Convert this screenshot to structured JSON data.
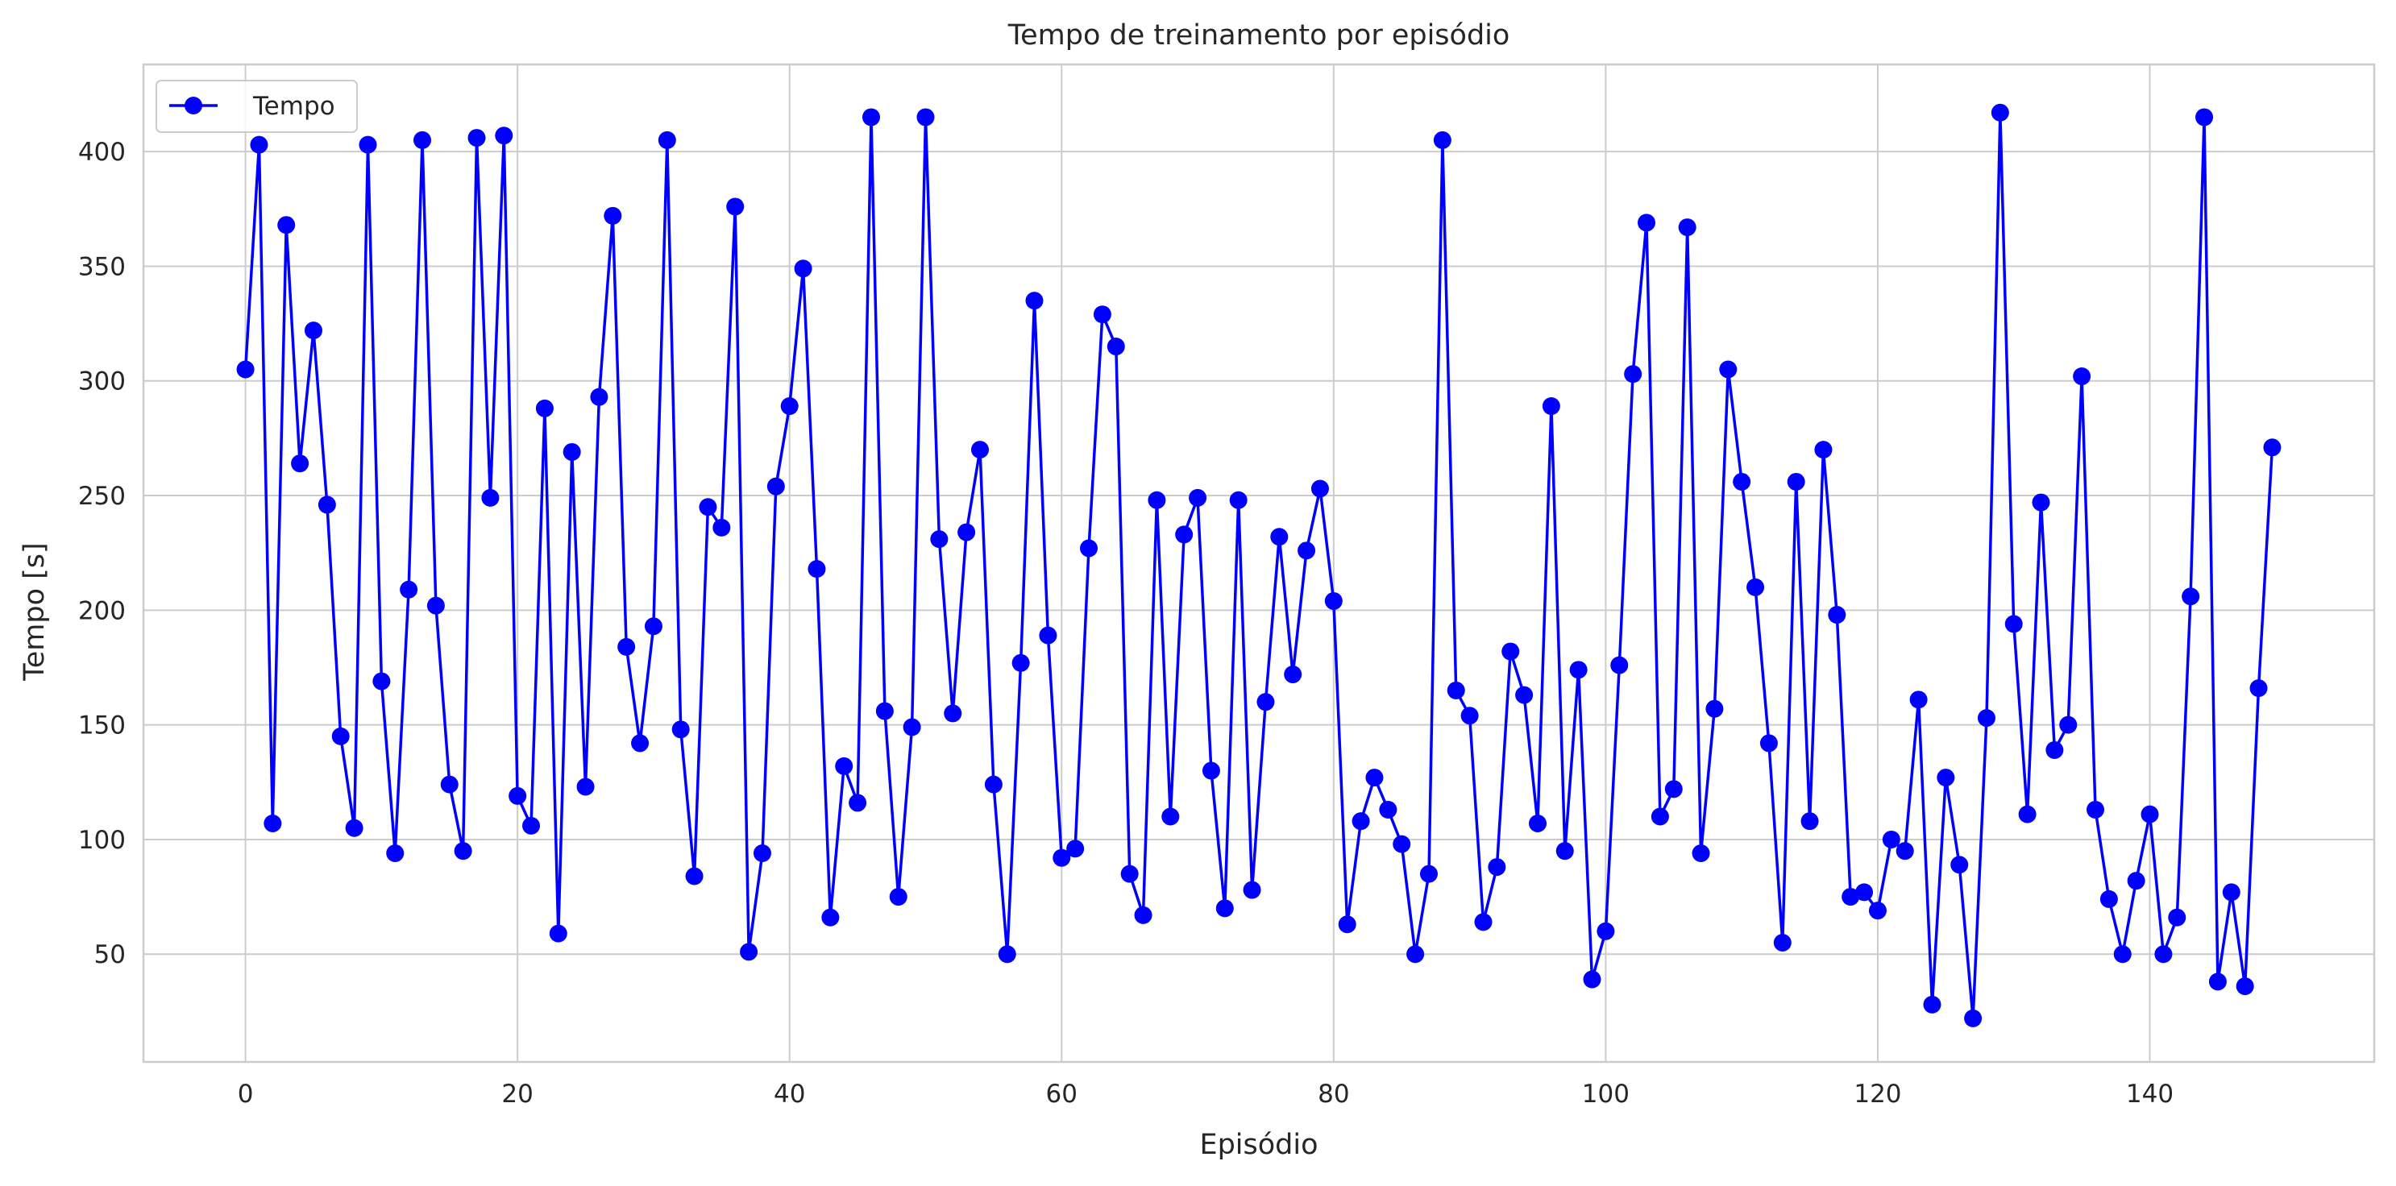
{
  "chart_data": {
    "type": "line",
    "title": "Tempo de treinamento por episódio",
    "xlabel": "Episódio",
    "ylabel": "Tempo [s]",
    "xlim": [
      -7.5,
      156.5
    ],
    "ylim": [
      3,
      438
    ],
    "xticks": [
      0,
      20,
      40,
      60,
      80,
      100,
      120,
      140
    ],
    "yticks": [
      50,
      100,
      150,
      200,
      250,
      300,
      350,
      400
    ],
    "grid": true,
    "legend": {
      "position": "top-left",
      "entries": [
        "Tempo"
      ]
    },
    "series": [
      {
        "name": "Tempo",
        "color": "#0000ff",
        "marker": "circle",
        "x": [
          0,
          1,
          2,
          3,
          4,
          5,
          6,
          7,
          8,
          9,
          10,
          11,
          12,
          13,
          14,
          15,
          16,
          17,
          18,
          19,
          20,
          21,
          22,
          23,
          24,
          25,
          26,
          27,
          28,
          29,
          30,
          31,
          32,
          33,
          34,
          35,
          36,
          37,
          38,
          39,
          40,
          41,
          42,
          43,
          44,
          45,
          46,
          47,
          48,
          49,
          50,
          51,
          52,
          53,
          54,
          55,
          56,
          57,
          58,
          59,
          60,
          61,
          62,
          63,
          64,
          65,
          66,
          67,
          68,
          69,
          70,
          71,
          72,
          73,
          74,
          75,
          76,
          77,
          78,
          79,
          80,
          81,
          82,
          83,
          84,
          85,
          86,
          87,
          88,
          89,
          90,
          91,
          92,
          93,
          94,
          95,
          96,
          97,
          98,
          99,
          100,
          101,
          102,
          103,
          104,
          105,
          106,
          107,
          108,
          109,
          110,
          111,
          112,
          113,
          114,
          115,
          116,
          117,
          118,
          119,
          120,
          121,
          122,
          123,
          124,
          125,
          126,
          127,
          128,
          129,
          130,
          131,
          132,
          133,
          134,
          135,
          136,
          137,
          138,
          139,
          140,
          141,
          142,
          143,
          144,
          145,
          146,
          147,
          148,
          149
        ],
        "values": [
          305,
          403,
          107,
          368,
          264,
          322,
          246,
          145,
          105,
          403,
          169,
          94,
          209,
          405,
          202,
          124,
          95,
          406,
          249,
          407,
          119,
          106,
          288,
          59,
          269,
          123,
          293,
          372,
          184,
          142,
          193,
          405,
          148,
          84,
          245,
          236,
          376,
          51,
          94,
          254,
          289,
          349,
          218,
          66,
          132,
          116,
          415,
          156,
          75,
          149,
          415,
          231,
          155,
          234,
          270,
          124,
          50,
          177,
          335,
          189,
          92,
          96,
          227,
          329,
          315,
          85,
          67,
          248,
          110,
          233,
          249,
          130,
          70,
          248,
          78,
          160,
          232,
          172,
          226,
          253,
          204,
          63,
          108,
          127,
          113,
          98,
          50,
          85,
          405,
          165,
          154,
          64,
          88,
          182,
          163,
          107,
          289,
          95,
          174,
          39,
          60,
          176,
          303,
          369,
          110,
          122,
          367,
          94,
          157,
          305,
          256,
          210,
          142,
          55,
          256,
          108,
          270,
          198,
          75,
          77,
          69,
          100,
          95,
          161,
          28,
          127,
          89,
          22,
          153,
          417,
          194,
          111,
          247,
          139,
          150,
          302,
          113,
          74,
          50,
          82,
          111,
          50,
          66,
          206,
          415,
          38,
          77,
          36,
          166,
          271
        ]
      }
    ]
  }
}
